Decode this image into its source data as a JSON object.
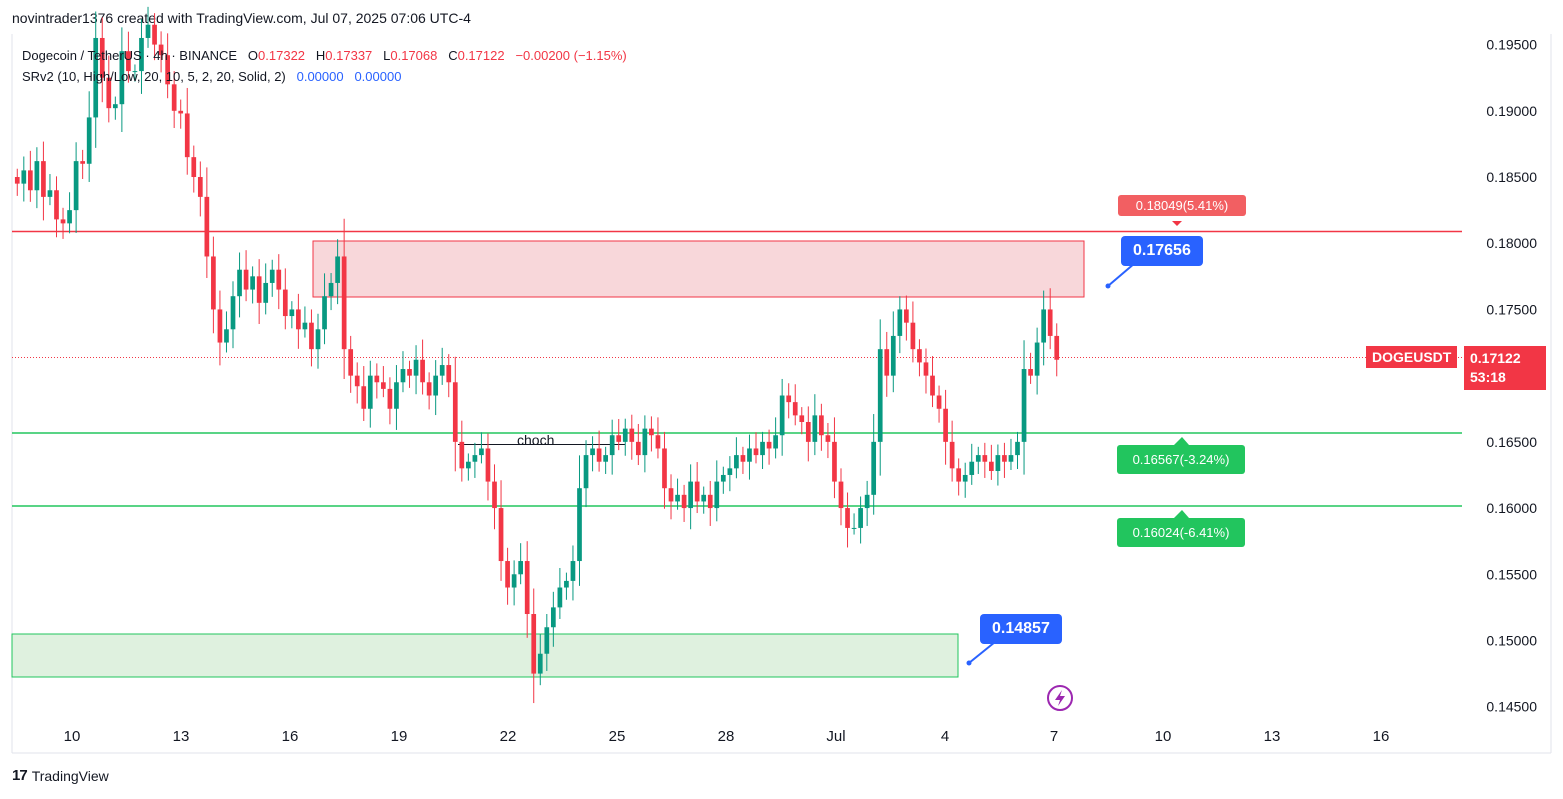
{
  "header": {
    "credit": "novintrader1376 created with TradingView.com, Jul 07, 2025 07:06 UTC-4"
  },
  "legend": {
    "symbol_line": "Dogecoin / TetherUS · 4h · BINANCE",
    "open_label": "O",
    "open": "0.17322",
    "high_label": "H",
    "high": "0.17337",
    "low_label": "L",
    "low": "0.17068",
    "close_label": "C",
    "close": "0.17122",
    "change": "−0.00200 (−1.15%)",
    "indicator": "SRv2 (10, High/Low, 20, 10, 5, 2, 20, Solid, 2)",
    "indicator_v1": "0.00000",
    "indicator_v2": "0.00000"
  },
  "price_scale": {
    "symbol": "DOGEUSDT",
    "last_price": "0.17122",
    "countdown": "53:18"
  },
  "annotations": {
    "resistance_label": "0.18049(5.41%)",
    "support1_label": "0.16567(-3.24%)",
    "support2_label": "0.16024(-6.41%)",
    "callout_top": "0.17656",
    "callout_bottom": "0.14857",
    "choch": "choch"
  },
  "footer": {
    "brand": "TradingView",
    "logo": "17"
  },
  "colors": {
    "up": "#089981",
    "down": "#f23645",
    "resistance": "#f23645",
    "support": "#22c55e",
    "callout": "#2962ff"
  },
  "chart_data": {
    "type": "candlestick",
    "symbol": "DOGEUSDT",
    "interval": "4h",
    "exchange": "BINANCE",
    "y_ticks": [
      0.145,
      0.15,
      0.155,
      0.16,
      0.165,
      0.17,
      0.175,
      0.18,
      0.185,
      0.19,
      0.195
    ],
    "y_tick_labels": [
      "0.14500",
      "0.15000",
      "0.15500",
      "0.16000",
      "0.16500",
      "0.17000",
      "0.17500",
      "0.18000",
      "0.18500",
      "0.19000",
      "0.19500"
    ],
    "ylim": [
      0.1446,
      0.1958
    ],
    "x_labels": [
      "10",
      "13",
      "16",
      "19",
      "22",
      "25",
      "28",
      "Jul",
      "4",
      "7",
      "10",
      "13",
      "16"
    ],
    "closes": [
      0.1845,
      0.1855,
      0.184,
      0.1862,
      0.1835,
      0.184,
      0.1818,
      0.1815,
      0.1825,
      0.1862,
      0.186,
      0.1895,
      0.1955,
      0.1925,
      0.1902,
      0.1905,
      0.1945,
      0.193,
      0.193,
      0.1955,
      0.1965,
      0.195,
      0.1942,
      0.192,
      0.19,
      0.1898,
      0.1865,
      0.185,
      0.1835,
      0.179,
      0.175,
      0.1725,
      0.1735,
      0.176,
      0.178,
      0.1765,
      0.1775,
      0.1755,
      0.177,
      0.178,
      0.1765,
      0.1745,
      0.175,
      0.1735,
      0.174,
      0.172,
      0.1735,
      0.176,
      0.177,
      0.179,
      0.172,
      0.17,
      0.1692,
      0.1675,
      0.17,
      0.1695,
      0.169,
      0.1675,
      0.1695,
      0.1705,
      0.17,
      0.1712,
      0.1695,
      0.1685,
      0.17,
      0.1708,
      0.1695,
      0.165,
      0.163,
      0.1635,
      0.164,
      0.1645,
      0.162,
      0.16,
      0.156,
      0.154,
      0.155,
      0.156,
      0.152,
      0.1475,
      0.149,
      0.151,
      0.1525,
      0.154,
      0.1545,
      0.156,
      0.1615,
      0.164,
      0.1645,
      0.1635,
      0.164,
      0.1655,
      0.165,
      0.166,
      0.165,
      0.164,
      0.166,
      0.1655,
      0.1645,
      0.1615,
      0.1605,
      0.161,
      0.16,
      0.162,
      0.1605,
      0.161,
      0.16,
      0.162,
      0.1625,
      0.163,
      0.164,
      0.1635,
      0.1645,
      0.164,
      0.165,
      0.1645,
      0.1655,
      0.1685,
      0.168,
      0.167,
      0.1665,
      0.165,
      0.167,
      0.1655,
      0.165,
      0.162,
      0.16,
      0.1585,
      0.1585,
      0.16,
      0.161,
      0.165,
      0.172,
      0.17,
      0.173,
      0.175,
      0.174,
      0.172,
      0.171,
      0.17,
      0.1685,
      0.1675,
      0.165,
      0.163,
      0.162,
      0.1625,
      0.1635,
      0.164,
      0.1635,
      0.1628,
      0.164,
      0.1635,
      0.164,
      0.165,
      0.1705,
      0.17,
      0.1725,
      0.175,
      0.173,
      0.1712
    ]
  }
}
